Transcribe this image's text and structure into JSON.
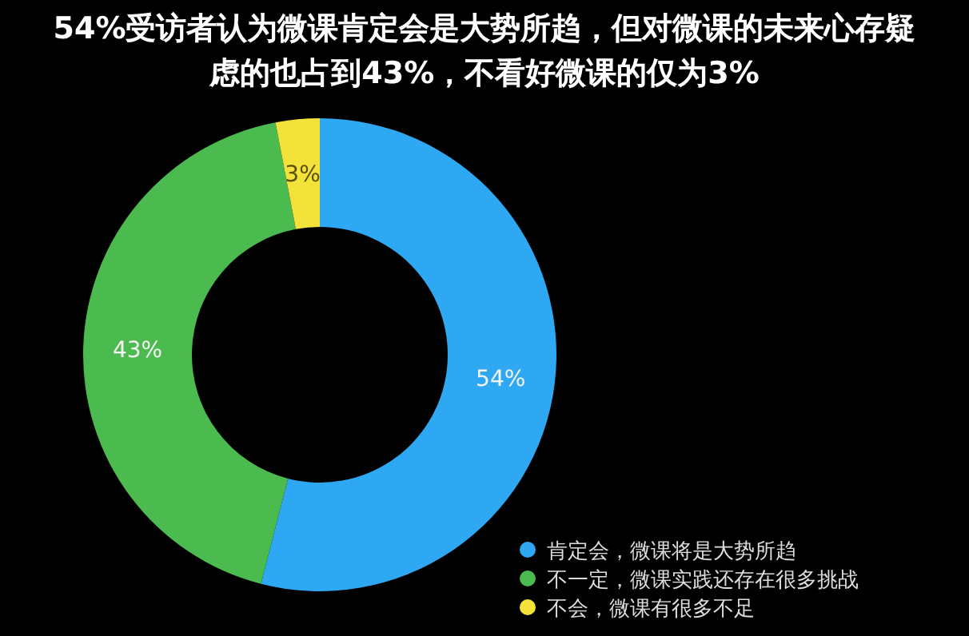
{
  "chart_data": {
    "type": "donut",
    "title": "54%受访者认为微课肯定会是大势所趋，但对微课的未来心存疑虑的也占到43%，不看好微课的仅为3%",
    "categories": [
      "肯定会，微课将是大势所趋",
      "不一定，微课实践还存在很多挑战",
      "不会，微课有很多不足"
    ],
    "values": [
      54,
      43,
      3
    ],
    "colors": [
      "#2ea8f2",
      "#4cbb4f",
      "#f2e23a"
    ],
    "value_labels": [
      "54%",
      "43%",
      "3%"
    ],
    "legend": "bottom right"
  }
}
